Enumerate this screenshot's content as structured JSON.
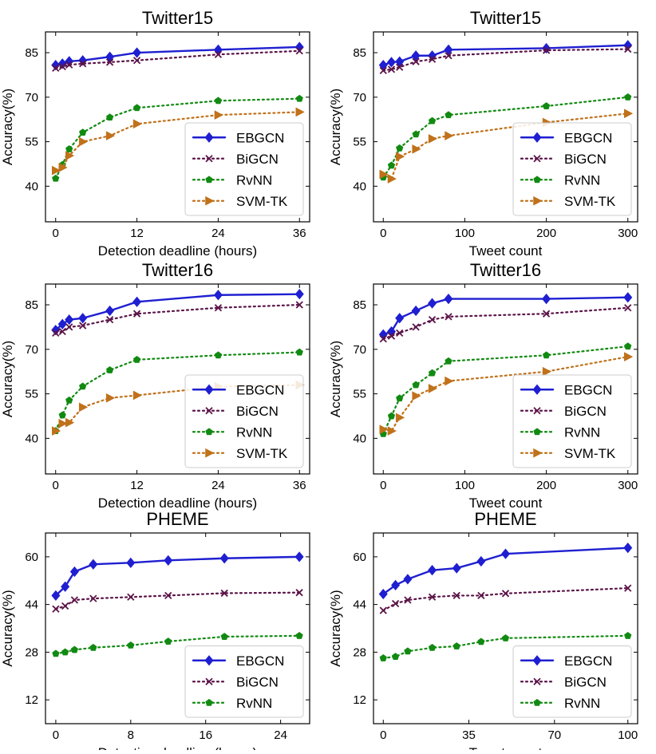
{
  "colors": {
    "EBGCN": "#1f1fd1",
    "BiGCN": "#5b1448",
    "RvNN": "#118a11",
    "SVM-TK": "#c0711a"
  },
  "chart_data": [
    {
      "type": "line",
      "title": "Twitter15",
      "xlabel": "Detection deadline (hours)",
      "ylabel": "Accuracy(%)",
      "xlim": [
        -1.5,
        37.5
      ],
      "ylim": [
        28,
        92
      ],
      "xticks": [
        0,
        12,
        24,
        36
      ],
      "yticks": [
        40,
        55,
        70,
        85
      ],
      "legend": "bottom-right",
      "series": [
        {
          "name": "EBGCN",
          "x": [
            0,
            1,
            2,
            4,
            8,
            12,
            24,
            36
          ],
          "values": [
            80.8,
            81.3,
            82.1,
            82.4,
            83.6,
            85.0,
            86.0,
            86.9
          ]
        },
        {
          "name": "BiGCN",
          "x": [
            0,
            1,
            2,
            4,
            8,
            12,
            24,
            36
          ],
          "values": [
            79.8,
            80.3,
            80.9,
            81.3,
            81.8,
            82.4,
            84.4,
            85.6
          ]
        },
        {
          "name": "RvNN",
          "x": [
            0,
            1,
            2,
            4,
            8,
            12,
            24,
            36
          ],
          "values": [
            42.6,
            47.2,
            52.5,
            58.1,
            63.2,
            66.4,
            68.8,
            69.5
          ]
        },
        {
          "name": "SVM-TK",
          "x": [
            0,
            1,
            2,
            4,
            8,
            12,
            24,
            36
          ],
          "values": [
            45.3,
            46.3,
            50.3,
            55.0,
            57.0,
            61.0,
            64.0,
            65.0
          ]
        }
      ]
    },
    {
      "type": "line",
      "title": "Twitter15",
      "xlabel": "Tweet count",
      "ylabel": "Accuracy(%)",
      "xlim": [
        -12,
        312
      ],
      "ylim": [
        28,
        92
      ],
      "xticks": [
        0,
        100,
        200,
        300
      ],
      "yticks": [
        40,
        55,
        70,
        85
      ],
      "legend": "bottom-right",
      "series": [
        {
          "name": "EBGCN",
          "x": [
            0,
            10,
            20,
            40,
            60,
            80,
            200,
            300
          ],
          "values": [
            80.8,
            81.8,
            82.0,
            84.0,
            84.0,
            86.0,
            86.5,
            87.5
          ]
        },
        {
          "name": "BiGCN",
          "x": [
            0,
            10,
            20,
            40,
            60,
            80,
            200,
            300
          ],
          "values": [
            79.0,
            79.4,
            80.1,
            82.0,
            82.8,
            84.0,
            85.8,
            86.2
          ]
        },
        {
          "name": "RvNN",
          "x": [
            0,
            10,
            20,
            40,
            60,
            80,
            200,
            300
          ],
          "values": [
            43.0,
            47.0,
            52.8,
            57.5,
            62.0,
            64.0,
            67.0,
            70.0
          ]
        },
        {
          "name": "SVM-TK",
          "x": [
            0,
            10,
            20,
            40,
            60,
            80,
            200,
            300
          ],
          "values": [
            44.0,
            42.5,
            50.0,
            52.5,
            56.0,
            57.0,
            61.5,
            64.5
          ]
        }
      ]
    },
    {
      "type": "line",
      "title": "Twitter16",
      "xlabel": "Detection deadline (hours)",
      "ylabel": "Accuracy(%)",
      "xlim": [
        -1.5,
        37.5
      ],
      "ylim": [
        28,
        92
      ],
      "xticks": [
        0,
        12,
        24,
        36
      ],
      "yticks": [
        40,
        55,
        70,
        85
      ],
      "legend": "bottom-right",
      "series": [
        {
          "name": "EBGCN",
          "x": [
            0,
            1,
            2,
            4,
            8,
            12,
            24,
            36
          ],
          "values": [
            76.5,
            78.5,
            80.0,
            80.5,
            83.0,
            86.0,
            88.3,
            88.6
          ]
        },
        {
          "name": "BiGCN",
          "x": [
            0,
            1,
            2,
            4,
            8,
            12,
            24,
            36
          ],
          "values": [
            75.5,
            76.0,
            77.5,
            78.0,
            80.0,
            82.0,
            84.0,
            85.0
          ]
        },
        {
          "name": "RvNN",
          "x": [
            0,
            1,
            2,
            4,
            8,
            12,
            24,
            36
          ],
          "values": [
            42.5,
            47.8,
            52.8,
            57.5,
            63.0,
            66.5,
            68.0,
            69.0
          ]
        },
        {
          "name": "SVM-TK",
          "x": [
            0,
            1,
            2,
            4,
            8,
            12,
            24,
            36
          ],
          "values": [
            42.5,
            45.0,
            45.3,
            50.5,
            53.6,
            54.5,
            57.4,
            58.0
          ]
        }
      ]
    },
    {
      "type": "line",
      "title": "Twitter16",
      "xlabel": "Tweet count",
      "ylabel": "Accuracy(%)",
      "xlim": [
        -12,
        312
      ],
      "ylim": [
        28,
        92
      ],
      "xticks": [
        0,
        100,
        200,
        300
      ],
      "yticks": [
        40,
        55,
        70,
        85
      ],
      "legend": "bottom-right",
      "series": [
        {
          "name": "EBGCN",
          "x": [
            0,
            10,
            20,
            40,
            60,
            80,
            200,
            300
          ],
          "values": [
            75.0,
            76.0,
            80.5,
            83.0,
            85.5,
            87.0,
            87.0,
            87.5
          ]
        },
        {
          "name": "BiGCN",
          "x": [
            0,
            10,
            20,
            40,
            60,
            80,
            200,
            300
          ],
          "values": [
            73.5,
            74.5,
            75.5,
            77.5,
            80.0,
            81.0,
            82.0,
            84.0
          ]
        },
        {
          "name": "RvNN",
          "x": [
            0,
            10,
            20,
            40,
            60,
            80,
            200,
            300
          ],
          "values": [
            41.5,
            47.5,
            53.5,
            58.0,
            62.0,
            66.0,
            68.0,
            71.0
          ]
        },
        {
          "name": "SVM-TK",
          "x": [
            0,
            10,
            20,
            40,
            60,
            80,
            200,
            300
          ],
          "values": [
            43.0,
            42.5,
            47.0,
            54.3,
            56.8,
            59.3,
            62.5,
            67.5
          ]
        }
      ]
    },
    {
      "type": "line",
      "title": "PHEME",
      "xlabel": "Detection deadline (hours)",
      "ylabel": "Accuracy(%)",
      "xlim": [
        -1.1,
        27.1
      ],
      "ylim": [
        4,
        68
      ],
      "xticks": [
        0,
        8,
        16,
        24
      ],
      "yticks": [
        12,
        28,
        44,
        60
      ],
      "legend": "bottom-right",
      "series": [
        {
          "name": "EBGCN",
          "x": [
            0,
            1,
            2,
            4,
            8,
            12,
            18,
            26
          ],
          "values": [
            47.0,
            50.0,
            55.0,
            57.5,
            58.0,
            58.8,
            59.5,
            60.0
          ]
        },
        {
          "name": "BiGCN",
          "x": [
            0,
            1,
            2,
            4,
            8,
            12,
            18,
            26
          ],
          "values": [
            42.5,
            43.5,
            45.5,
            46.0,
            46.5,
            47.0,
            47.8,
            48.0
          ]
        },
        {
          "name": "RvNN",
          "x": [
            0,
            1,
            2,
            4,
            8,
            12,
            18,
            26
          ],
          "values": [
            27.5,
            28.0,
            28.8,
            29.5,
            30.3,
            31.6,
            33.2,
            33.5
          ]
        }
      ]
    },
    {
      "type": "line",
      "title": "PHEME",
      "xlabel": "Tweet count",
      "ylabel": "Accuracy(%)",
      "xlim": [
        -4,
        104
      ],
      "ylim": [
        4,
        68
      ],
      "xticks": [
        0,
        35,
        70,
        100
      ],
      "yticks": [
        12,
        28,
        44,
        60
      ],
      "legend": "bottom-right",
      "series": [
        {
          "name": "EBGCN",
          "x": [
            0,
            5,
            10,
            20,
            30,
            40,
            50,
            100
          ],
          "values": [
            47.5,
            50.5,
            52.5,
            55.5,
            56.2,
            58.5,
            61.0,
            63.0
          ]
        },
        {
          "name": "BiGCN",
          "x": [
            0,
            5,
            10,
            20,
            30,
            40,
            50,
            100
          ],
          "values": [
            42.0,
            44.3,
            45.5,
            46.5,
            47.0,
            47.0,
            47.7,
            49.5
          ]
        },
        {
          "name": "RvNN",
          "x": [
            0,
            5,
            10,
            20,
            30,
            40,
            50,
            100
          ],
          "values": [
            26.0,
            26.5,
            28.3,
            29.5,
            30.0,
            31.5,
            32.7,
            33.5
          ]
        }
      ]
    }
  ]
}
